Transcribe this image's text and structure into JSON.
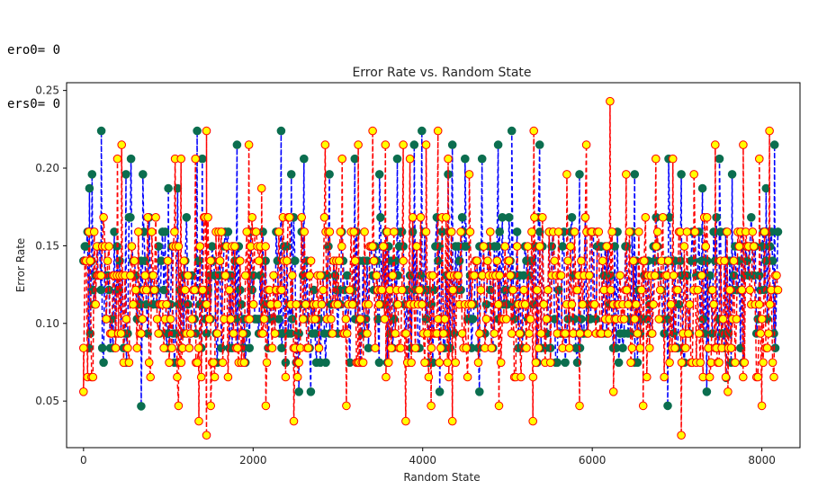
{
  "console": {
    "lines": [
      "ero0= 0",
      "ers0= 0"
    ]
  },
  "chart_data": {
    "type": "line",
    "title": "Error Rate vs. Random State",
    "xlabel": "Random State",
    "ylabel": "Error Rate",
    "xlim": [
      -200,
      8450
    ],
    "ylim": [
      0.02,
      0.255
    ],
    "xticks": [
      0,
      2000,
      4000,
      6000,
      8000
    ],
    "xtick_labels": [
      "0",
      "2000",
      "4000",
      "6000",
      "8000"
    ],
    "yticks": [
      0.05,
      0.1,
      0.15,
      0.2,
      0.25
    ],
    "ytick_labels": [
      "0.05",
      "0.10",
      "0.15",
      "0.20",
      "0.25"
    ],
    "x_range": [
      0,
      8190
    ],
    "level_step": 0.00935,
    "grid": false,
    "colors": {
      "series_a_line": "#0000ff",
      "series_a_marker": "#0b6e4f",
      "series_b_line": "#ff0000",
      "series_b_marker": "#ffff00",
      "series_b_edge": "#ff0000",
      "frame": "#000000"
    },
    "series": [
      {
        "linestyle": "dashed",
        "marker": "circle",
        "body_range": [
          0.075,
          0.168
        ],
        "low_points": [
          [
            680,
            0.0467
          ],
          [
            2540,
            0.056
          ],
          [
            2680,
            0.056
          ],
          [
            4200,
            0.056
          ],
          [
            4670,
            0.056
          ],
          [
            6890,
            0.047
          ],
          [
            7350,
            0.056
          ],
          [
            7580,
            0.065
          ]
        ],
        "high_points": [
          [
            70,
            0.187
          ],
          [
            100,
            0.196
          ],
          [
            210,
            0.224
          ],
          [
            500,
            0.196
          ],
          [
            560,
            0.206
          ],
          [
            700,
            0.196
          ],
          [
            1000,
            0.187
          ],
          [
            1110,
            0.187
          ],
          [
            1340,
            0.224
          ],
          [
            1400,
            0.206
          ],
          [
            1810,
            0.215
          ],
          [
            2330,
            0.224
          ],
          [
            2450,
            0.196
          ],
          [
            2600,
            0.206
          ],
          [
            2900,
            0.196
          ],
          [
            3200,
            0.206
          ],
          [
            3490,
            0.196
          ],
          [
            3700,
            0.206
          ],
          [
            3900,
            0.215
          ],
          [
            3990,
            0.224
          ],
          [
            4300,
            0.196
          ],
          [
            4350,
            0.215
          ],
          [
            4500,
            0.206
          ],
          [
            4700,
            0.206
          ],
          [
            4890,
            0.215
          ],
          [
            5050,
            0.224
          ],
          [
            5380,
            0.215
          ],
          [
            5850,
            0.196
          ],
          [
            6500,
            0.196
          ],
          [
            6900,
            0.206
          ],
          [
            7050,
            0.196
          ],
          [
            7300,
            0.187
          ],
          [
            7500,
            0.206
          ],
          [
            7650,
            0.196
          ],
          [
            8050,
            0.187
          ],
          [
            8150,
            0.215
          ]
        ]
      },
      {
        "linestyle": "dashed",
        "marker": "circle",
        "body_range": [
          0.065,
          0.168
        ],
        "low_points": [
          [
            0,
            0.056
          ],
          [
            1120,
            0.047
          ],
          [
            1360,
            0.037
          ],
          [
            1450,
            0.028
          ],
          [
            1500,
            0.047
          ],
          [
            2150,
            0.047
          ],
          [
            2480,
            0.037
          ],
          [
            3100,
            0.047
          ],
          [
            3800,
            0.037
          ],
          [
            4100,
            0.047
          ],
          [
            4350,
            0.037
          ],
          [
            4900,
            0.047
          ],
          [
            5300,
            0.037
          ],
          [
            5850,
            0.047
          ],
          [
            6250,
            0.056
          ],
          [
            6600,
            0.047
          ],
          [
            7050,
            0.028
          ],
          [
            7600,
            0.056
          ],
          [
            8000,
            0.047
          ]
        ],
        "high_points": [
          [
            400,
            0.206
          ],
          [
            450,
            0.215
          ],
          [
            1080,
            0.206
          ],
          [
            1150,
            0.206
          ],
          [
            1320,
            0.206
          ],
          [
            1450,
            0.224
          ],
          [
            1950,
            0.215
          ],
          [
            2100,
            0.187
          ],
          [
            2850,
            0.215
          ],
          [
            3050,
            0.206
          ],
          [
            3240,
            0.215
          ],
          [
            3410,
            0.224
          ],
          [
            3560,
            0.215
          ],
          [
            3770,
            0.215
          ],
          [
            3850,
            0.206
          ],
          [
            4040,
            0.215
          ],
          [
            4180,
            0.224
          ],
          [
            4300,
            0.206
          ],
          [
            4550,
            0.196
          ],
          [
            5310,
            0.224
          ],
          [
            5700,
            0.196
          ],
          [
            5930,
            0.215
          ],
          [
            6210,
            0.243
          ],
          [
            6400,
            0.196
          ],
          [
            6750,
            0.206
          ],
          [
            6950,
            0.206
          ],
          [
            7200,
            0.196
          ],
          [
            7450,
            0.215
          ],
          [
            7780,
            0.215
          ],
          [
            7970,
            0.206
          ],
          [
            8090,
            0.224
          ]
        ]
      }
    ]
  }
}
